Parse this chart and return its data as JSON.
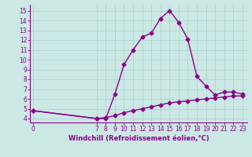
{
  "line1_x": [
    0,
    7,
    8,
    9,
    10,
    11,
    12,
    13,
    14,
    15,
    16,
    17,
    18,
    19,
    20,
    21,
    22,
    23
  ],
  "line1_y": [
    4.8,
    4.0,
    4.0,
    6.5,
    9.5,
    11.0,
    12.3,
    12.7,
    14.2,
    15.0,
    13.8,
    12.1,
    8.3,
    7.3,
    6.4,
    6.7,
    6.7,
    6.5
  ],
  "line2_x": [
    0,
    7,
    8,
    9,
    10,
    11,
    12,
    13,
    14,
    15,
    16,
    17,
    18,
    19,
    20,
    21,
    22,
    23
  ],
  "line2_y": [
    4.8,
    4.0,
    4.1,
    4.3,
    4.6,
    4.8,
    5.0,
    5.2,
    5.4,
    5.6,
    5.7,
    5.8,
    5.9,
    6.0,
    6.1,
    6.2,
    6.3,
    6.3
  ],
  "line_color": "#8B008B",
  "background_color": "#cce8e4",
  "grid_color": "#b0d4d0",
  "xlabel": "Windchill (Refroidissement éolien,°C)",
  "xlabel_color": "#8B008B",
  "xticks": [
    0,
    7,
    8,
    9,
    10,
    11,
    12,
    13,
    14,
    15,
    16,
    17,
    18,
    19,
    20,
    21,
    22,
    23
  ],
  "yticks": [
    4,
    5,
    6,
    7,
    8,
    9,
    10,
    11,
    12,
    13,
    14,
    15
  ],
  "xlim": [
    -0.3,
    23.5
  ],
  "ylim": [
    3.6,
    15.6
  ],
  "tick_color": "#8B008B",
  "marker": "D",
  "markersize": 2.5,
  "linewidth": 1.0,
  "tick_fontsize": 5.5,
  "xlabel_fontsize": 6.0
}
